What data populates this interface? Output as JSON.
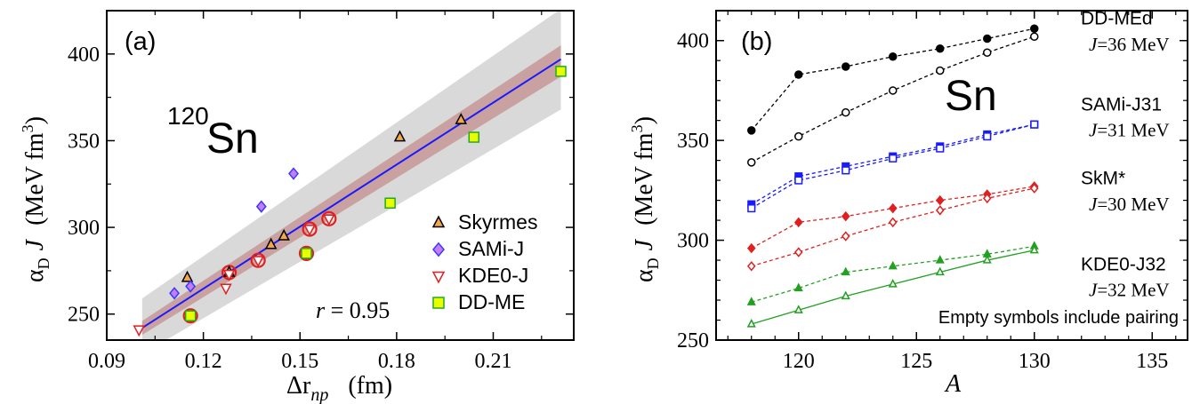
{
  "chart_data": [
    {
      "type": "scatter",
      "panel_label": "(a)",
      "nucleus_mass": "120",
      "nucleus_symbol": "Sn",
      "xlabel_main": "Δr",
      "xlabel_sub": "np",
      "xlabel_unit": "(fm)",
      "ylabel_alpha": "α",
      "ylabel_sub": "D",
      "ylabel_J": "J",
      "ylabel_unit": "(MeV fm",
      "ylabel_exp": "3",
      "xlim": [
        0.09,
        0.235
      ],
      "ylim": [
        235,
        425
      ],
      "xticks": [
        "0.09",
        "0.12",
        "0.15",
        "0.18",
        "0.21"
      ],
      "xtick_values": [
        0.09,
        0.12,
        0.15,
        0.18,
        0.21
      ],
      "yticks": [
        "250",
        "300",
        "350",
        "400"
      ],
      "ytick_values": [
        250,
        300,
        350,
        400
      ],
      "correlation": {
        "label": "r",
        "text": " = 0.95"
      },
      "fit": {
        "x": [
          0.101,
          0.231
        ],
        "y": [
          242,
          397
        ],
        "color": "#1a1aff"
      },
      "bands": {
        "outer": {
          "x": [
            0.101,
            0.231
          ],
          "upper": [
            259,
            426
          ],
          "lower": [
            227,
            368
          ],
          "color": "#d9d9d9"
        },
        "inner": {
          "x": [
            0.101,
            0.231
          ],
          "upper": [
            246,
            405
          ],
          "lower": [
            238,
            387
          ],
          "color": "#c79a9a"
        }
      },
      "series": [
        {
          "name": "Skyrmes",
          "marker": "triangle-up",
          "fill": "#f5a64a",
          "stroke": "#000000",
          "points": [
            [
              0.115,
              271
            ],
            [
              0.128,
              274
            ],
            [
              0.141,
              290
            ],
            [
              0.145,
              295
            ],
            [
              0.181,
              352
            ],
            [
              0.2,
              362
            ]
          ]
        },
        {
          "name": "SAMi-J",
          "marker": "diamond",
          "fill": "#c67cf5",
          "stroke": "#3a3aff",
          "points": [
            [
              0.111,
              262
            ],
            [
              0.116,
              266
            ],
            [
              0.138,
              312
            ],
            [
              0.148,
              331
            ]
          ]
        },
        {
          "name": "KDE0-J",
          "marker": "triangle-down",
          "fill": "#ffffff",
          "stroke": "#e02020",
          "points": [
            [
              0.1,
              241
            ],
            [
              0.116,
              249
            ],
            [
              0.127,
              265
            ],
            [
              0.128,
              273
            ],
            [
              0.137,
              281
            ],
            [
              0.153,
              299
            ],
            [
              0.159,
              305
            ],
            [
              0.152,
              285
            ]
          ]
        },
        {
          "name": "DD-ME",
          "marker": "square",
          "fill": "#e8ff00",
          "stroke": "#22aa22",
          "points": [
            [
              0.116,
              249
            ],
            [
              0.152,
              285
            ],
            [
              0.178,
              314
            ],
            [
              0.204,
              352
            ],
            [
              0.231,
              390
            ]
          ]
        }
      ],
      "circled_points": [
        [
          0.116,
          249
        ],
        [
          0.128,
          274
        ],
        [
          0.137,
          281
        ],
        [
          0.153,
          299
        ],
        [
          0.159,
          305
        ],
        [
          0.152,
          285
        ]
      ],
      "legend": [
        "Skyrmes",
        "SAMi-J",
        "KDE0-J",
        "DD-ME"
      ]
    },
    {
      "type": "line",
      "panel_label": "(b)",
      "element_label": "Sn",
      "xlabel": "A",
      "ylabel_alpha": "α",
      "ylabel_sub": "D",
      "ylabel_J": "J",
      "ylabel_unit": "(MeV fm",
      "ylabel_exp": "3",
      "xlim": [
        116.5,
        136.5
      ],
      "ylim": [
        250,
        415
      ],
      "xticks": [
        "120",
        "125",
        "130",
        "135"
      ],
      "xtick_values": [
        120,
        125,
        130,
        135
      ],
      "yticks": [
        "250",
        "300",
        "350",
        "400"
      ],
      "ytick_values": [
        250,
        300,
        350,
        400
      ],
      "x": [
        118,
        120,
        122,
        124,
        126,
        128,
        130
      ],
      "note": "Empty symbols include pairing",
      "series": [
        {
          "name": "DD-MEd",
          "marker": "circle",
          "filled": true,
          "dashed": true,
          "color": "#000000",
          "values": [
            355,
            383,
            387,
            392,
            396,
            401,
            406
          ]
        },
        {
          "name": "DD-MEd",
          "marker": "circle",
          "filled": false,
          "dashed": true,
          "color": "#000000",
          "values": [
            339,
            352,
            364,
            375,
            385,
            394,
            402
          ]
        },
        {
          "name": "SAMi-J31",
          "marker": "square",
          "filled": true,
          "dashed": true,
          "color": "#1a1aff",
          "values": [
            318,
            332,
            337,
            342,
            347,
            353,
            358
          ]
        },
        {
          "name": "SAMi-J31",
          "marker": "square",
          "filled": false,
          "dashed": true,
          "color": "#1a1aff",
          "values": [
            316,
            330,
            335,
            341,
            346,
            352,
            358
          ]
        },
        {
          "name": "SkM*",
          "marker": "diamond",
          "filled": true,
          "dashed": true,
          "color": "#e02020",
          "values": [
            296,
            309,
            312,
            316,
            320,
            323,
            327
          ]
        },
        {
          "name": "SkM*",
          "marker": "diamond",
          "filled": false,
          "dashed": true,
          "color": "#e02020",
          "values": [
            287,
            294,
            302,
            309,
            315,
            321,
            326
          ]
        },
        {
          "name": "KDE0-J32",
          "marker": "triangle-up",
          "filled": true,
          "dashed": true,
          "color": "#22a022",
          "values": [
            269,
            276,
            284,
            287,
            290,
            293,
            297
          ]
        },
        {
          "name": "KDE0-J32",
          "marker": "triangle-up",
          "filled": false,
          "dashed": false,
          "color": "#22a022",
          "values": [
            258,
            265,
            272,
            278,
            284,
            290,
            295
          ]
        }
      ],
      "labels": [
        {
          "name": "DD-MEd",
          "j_text": "=36 MeV",
          "y_name": 408,
          "y_j": 395
        },
        {
          "name": "SAMi-J31",
          "j_text": "=31 MeV",
          "y_name": 365,
          "y_j": 352
        },
        {
          "name": "SkM*",
          "j_text": "=30 MeV",
          "y_name": 328,
          "y_j": 315
        },
        {
          "name": "KDE0-J32",
          "j_text": "=32 MeV",
          "y_name": 285,
          "y_j": 272
        }
      ],
      "j_symbol": "J"
    }
  ]
}
